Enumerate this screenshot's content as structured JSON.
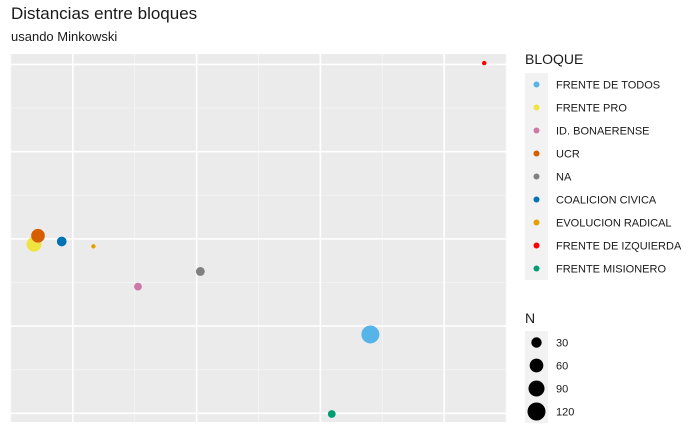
{
  "chart_data": {
    "type": "scatter",
    "title": "Distancias entre bloques",
    "subtitle": "usando Minkowski",
    "xlabel": "",
    "ylabel": "",
    "grid": true,
    "legend_position": "right",
    "color_legend_title": "BLOQUE",
    "size_legend_title": "N",
    "size_legend_values": [
      30,
      60,
      90,
      120
    ],
    "series": [
      {
        "name": "FRENTE DE TODOS",
        "color": "#56B4E9",
        "x": 0.702,
        "y": -0.548,
        "n": 120
      },
      {
        "name": "FRENTE PRO",
        "color": "#F0E442",
        "x": -0.657,
        "y": -0.031,
        "n": 75
      },
      {
        "name": "ID. BONAERENSE",
        "color": "#CC79A7",
        "x": -0.237,
        "y": -0.274,
        "n": 15
      },
      {
        "name": "UCR",
        "color": "#D55E00",
        "x": -0.641,
        "y": 0.018,
        "n": 60
      },
      {
        "name": "NA",
        "color": "#808080",
        "x": 0.015,
        "y": -0.187,
        "n": 20
      },
      {
        "name": "COALICION CIVICA",
        "color": "#0072B2",
        "x": -0.545,
        "y": -0.015,
        "n": 25
      },
      {
        "name": "EVOLUCION RADICAL",
        "color": "#E69F00",
        "x": -0.417,
        "y": -0.043,
        "n": 8
      },
      {
        "name": "FRENTE DE IZQUIERDA",
        "color": "#FF0000",
        "x": 1.162,
        "y": 1.008,
        "n": 8
      },
      {
        "name": "FRENTE MISIONERO",
        "color": "#009E73",
        "x": 0.546,
        "y": -1.004,
        "n": 15
      }
    ]
  }
}
